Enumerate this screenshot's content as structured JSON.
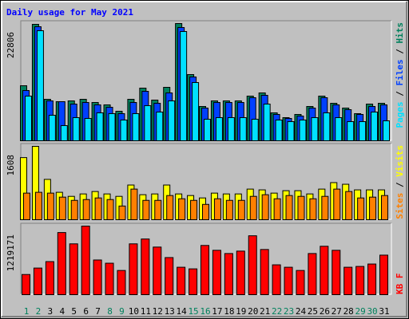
{
  "chart_data": [
    {
      "type": "bar",
      "title": "Daily usage for May 2021",
      "ylim": [
        0,
        22806
      ],
      "yticks": [
        22806
      ],
      "legend_separator": " / ",
      "series": [
        {
          "name": "Hits",
          "color": "#00805c",
          "values": [
            10705,
            22650,
            8067,
            7602,
            7757,
            8067,
            7447,
            6981,
            5740,
            8067,
            10239,
            7912,
            10394,
            22806,
            12877,
            6671,
            7757,
            7757,
            7757,
            8688,
            9308,
            5430,
            4499,
            5120,
            6671,
            8688,
            7292,
            6361,
            5275,
            7136,
            7292
          ]
        },
        {
          "name": "Files",
          "color": "#0040ff",
          "values": [
            9774,
            22185,
            7757,
            7602,
            7136,
            7447,
            6981,
            6516,
            5275,
            7447,
            9619,
            7292,
            9308,
            22030,
            12411,
            6361,
            7447,
            7447,
            7447,
            8378,
            8843,
            5120,
            4344,
            4809,
            6361,
            8378,
            6981,
            6050,
            5120,
            6671,
            6981
          ]
        },
        {
          "name": "Pages",
          "color": "#00e0ff",
          "values": [
            8688,
            21409,
            4964,
            2948,
            4499,
            4344,
            5430,
            5275,
            4034,
            5275,
            6826,
            5585,
            7757,
            21254,
            11325,
            4189,
            4499,
            4499,
            4499,
            4189,
            7136,
            4034,
            3723,
            4034,
            4499,
            5430,
            4499,
            3723,
            3723,
            5585,
            3879
          ]
        }
      ]
    },
    {
      "type": "bar",
      "ylim": [
        0,
        1608
      ],
      "yticks": [
        1608
      ],
      "legend_separator": " / ",
      "series": [
        {
          "name": "Visits",
          "color": "#ffff00",
          "values": [
            1361,
            1608,
            884,
            601,
            512,
            565,
            618,
            565,
            512,
            760,
            548,
            565,
            760,
            565,
            530,
            477,
            583,
            565,
            565,
            671,
            654,
            583,
            636,
            636,
            565,
            671,
            813,
            777,
            654,
            654,
            654
          ]
        },
        {
          "name": "Sites",
          "color": "#ff8000",
          "values": [
            583,
            601,
            583,
            495,
            424,
            442,
            477,
            442,
            300,
            671,
            424,
            424,
            530,
            459,
            424,
            336,
            459,
            424,
            424,
            512,
            548,
            459,
            530,
            512,
            459,
            512,
            671,
            618,
            477,
            495,
            530
          ]
        }
      ]
    },
    {
      "type": "bar",
      "ylim": [
        0,
        1219171
      ],
      "yticks": [
        1219171
      ],
      "categories": [
        "1",
        "2",
        "3",
        "4",
        "5",
        "6",
        "7",
        "8",
        "9",
        "10",
        "11",
        "12",
        "13",
        "14",
        "15",
        "16",
        "17",
        "18",
        "19",
        "20",
        "21",
        "22",
        "23",
        "24",
        "25",
        "26",
        "27",
        "28",
        "29",
        "30",
        "31"
      ],
      "category_colors": [
        "#00805c",
        "#00805c",
        "#000000",
        "#000000",
        "#000000",
        "#000000",
        "#000000",
        "#00805c",
        "#00805c",
        "#000000",
        "#000000",
        "#000000",
        "#000000",
        "#000000",
        "#00805c",
        "#00805c",
        "#000000",
        "#000000",
        "#000000",
        "#000000",
        "#000000",
        "#00805c",
        "#00805c",
        "#000000",
        "#000000",
        "#000000",
        "#000000",
        "#000000",
        "#00805c",
        "#00805c",
        "#000000"
      ],
      "series": [
        {
          "name": "KB F",
          "color": "#ff0000",
          "values": [
            358575,
            473319,
            588063,
            1104411,
            903609,
            1219171,
            616749,
            559377,
            430290,
            903609,
            989667,
            846237,
            659778,
            487662,
            458976,
            874923,
            788865,
            731493,
            774522,
            1047039,
            803208,
            530691,
            487662,
            430290,
            731493,
            860580,
            788865,
            487662,
            502005,
            545034,
            702807
          ]
        }
      ]
    }
  ]
}
